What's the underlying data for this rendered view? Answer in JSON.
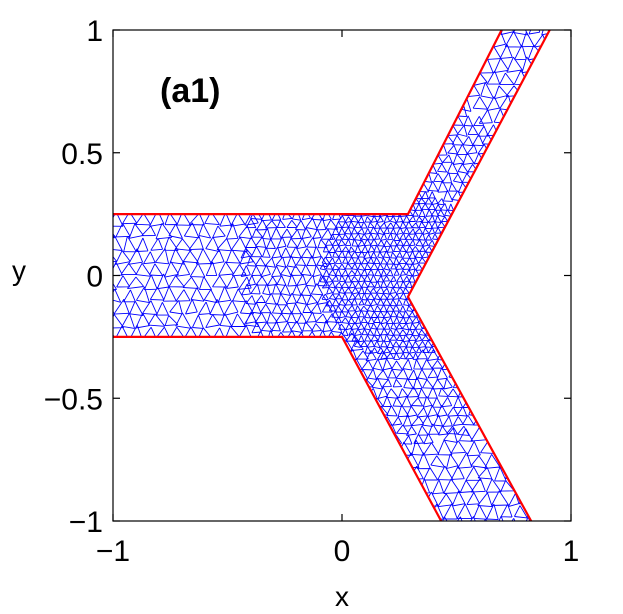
{
  "chart_data": {
    "type": "mesh",
    "panel_label": "(a1)",
    "xlabel": "x",
    "ylabel": "y",
    "xlim": [
      -1,
      1
    ],
    "ylim": [
      -1,
      1
    ],
    "xticks": [
      -1,
      0,
      1
    ],
    "yticks": [
      -1,
      -0.5,
      0,
      0.5,
      1
    ],
    "xtick_labels": [
      "−1",
      "0",
      "1"
    ],
    "ytick_labels": [
      "−1",
      "−0.5",
      "0",
      "0.5",
      "1"
    ],
    "grid": false,
    "boundary": {
      "name": "domain boundary",
      "color": "#ff0000",
      "upper_path": [
        [
          -1,
          0.25
        ],
        [
          0.288,
          0.25
        ],
        [
          0.697,
          1.0
        ]
      ],
      "upper_outer_path": [
        [
          0.907,
          1.0
        ],
        [
          0.288,
          -0.087
        ],
        [
          0.826,
          -1.0
        ]
      ],
      "lower_path": [
        [
          0.433,
          -1.0
        ],
        [
          0.0,
          -0.25
        ],
        [
          -1,
          -0.25
        ]
      ]
    },
    "mesh": {
      "name": "triangular mesh",
      "color": "#0000ff",
      "coarse_spacing": 0.06,
      "fine_spacing": 0.028
    }
  }
}
